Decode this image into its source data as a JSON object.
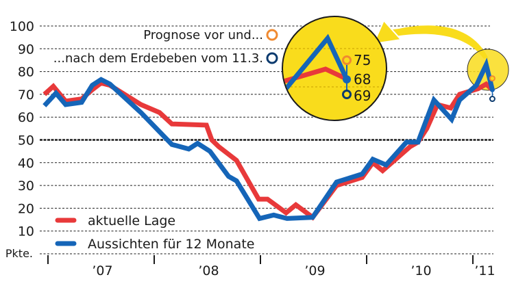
{
  "chart_data": {
    "type": "line",
    "title": "",
    "xlabel": "",
    "ylabel": "Pkte.",
    "ylim": [
      0,
      100
    ],
    "yticks": [
      100,
      90,
      80,
      70,
      60,
      50,
      40,
      30,
      20,
      10
    ],
    "reference_line": 50,
    "grid": true,
    "x_range_months": [
      -0.4,
      50.2
    ],
    "x_year_labels": [
      {
        "label": "’07",
        "month_center": 6
      },
      {
        "label": "’08",
        "month_center": 18
      },
      {
        "label": "’09",
        "month_center": 30
      },
      {
        "label": "’10",
        "month_center": 42
      },
      {
        "label": "’11",
        "month_center": 49.2
      }
    ],
    "x_tick_months": [
      0,
      12,
      24,
      36,
      48
    ],
    "legend_position": "bottom-left",
    "series": [
      {
        "name": "aktuelle Lage",
        "color": "#e8393a",
        "points": [
          [
            -0.4,
            70
          ],
          [
            0.6,
            73.5
          ],
          [
            2,
            67
          ],
          [
            3.8,
            68
          ],
          [
            5,
            72
          ],
          [
            6,
            75
          ],
          [
            7,
            74
          ],
          [
            10.5,
            65.5
          ],
          [
            12.6,
            62
          ],
          [
            14,
            57
          ],
          [
            17.9,
            56.5
          ],
          [
            18.5,
            50
          ],
          [
            19.3,
            47
          ],
          [
            21.3,
            41
          ],
          [
            23.8,
            24
          ],
          [
            24.8,
            24
          ],
          [
            26.9,
            18
          ],
          [
            28,
            21.5
          ],
          [
            29.9,
            16
          ],
          [
            32.6,
            30
          ],
          [
            35.5,
            33.5
          ],
          [
            36.7,
            40
          ],
          [
            37.8,
            36.5
          ],
          [
            40.9,
            47
          ],
          [
            41.8,
            49
          ],
          [
            42.8,
            55
          ],
          [
            44,
            65.5
          ],
          [
            45.5,
            64
          ],
          [
            46.5,
            70
          ],
          [
            48.6,
            72.5
          ],
          [
            49.5,
            74.5
          ],
          [
            50.2,
            72
          ]
        ]
      },
      {
        "name": "Aussichten für 12 Monate",
        "color": "#1565b8",
        "points": [
          [
            -0.4,
            65
          ],
          [
            0.9,
            70.5
          ],
          [
            2,
            65.5
          ],
          [
            3.8,
            66.5
          ],
          [
            5,
            74
          ],
          [
            6,
            76.5
          ],
          [
            7,
            74.5
          ],
          [
            10.5,
            62
          ],
          [
            14,
            48
          ],
          [
            15.9,
            46
          ],
          [
            16.9,
            48.5
          ],
          [
            18.3,
            45
          ],
          [
            20.4,
            34
          ],
          [
            21.3,
            32
          ],
          [
            23.9,
            15.5
          ],
          [
            25.5,
            17
          ],
          [
            27,
            15.5
          ],
          [
            29.9,
            16
          ],
          [
            32.6,
            31.5
          ],
          [
            35.5,
            35
          ],
          [
            36.7,
            41.5
          ],
          [
            38.2,
            39
          ],
          [
            40.5,
            49
          ],
          [
            41.8,
            49
          ],
          [
            43.6,
            67.5
          ],
          [
            45.6,
            59
          ],
          [
            46.5,
            67.5
          ],
          [
            48.4,
            74
          ],
          [
            49.5,
            83
          ],
          [
            50.2,
            72
          ]
        ]
      }
    ],
    "callout": {
      "forecast_before_label": "Prognose vor und...",
      "forecast_after_label": "...nach dem Erdebeben vom 11.3.",
      "forecast_before_color": "#f08a30",
      "forecast_after_color": "#0b3a6e",
      "forecast_before_value": "75",
      "actual_value": "68",
      "forecast_after_value": "69",
      "highlight_color": "#f9dc1c"
    }
  },
  "legend": {
    "items": [
      {
        "label": "aktuelle Lage",
        "color": "#e8393a"
      },
      {
        "label": "Aussichten für 12 Monate",
        "color": "#1565b8"
      }
    ]
  },
  "axis": {
    "unit_label": "Pkte."
  }
}
